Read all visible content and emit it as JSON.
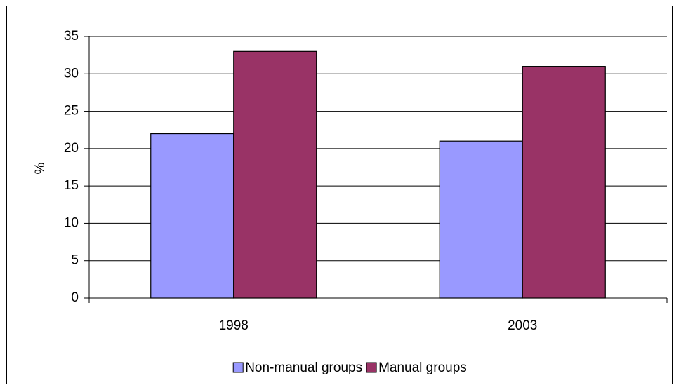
{
  "chart_data": {
    "type": "bar",
    "y_label": "%",
    "categories": [
      "1998",
      "2003"
    ],
    "series": [
      {
        "name": "Non-manual groups",
        "color": "#9999ff",
        "values": [
          22,
          21
        ]
      },
      {
        "name": "Manual groups",
        "color": "#993366",
        "values": [
          33,
          31
        ]
      }
    ],
    "ylim": [
      0,
      35
    ],
    "yticks": [
      0,
      5,
      10,
      15,
      20,
      25,
      30,
      35
    ],
    "grid": true,
    "legend": "bottom"
  }
}
